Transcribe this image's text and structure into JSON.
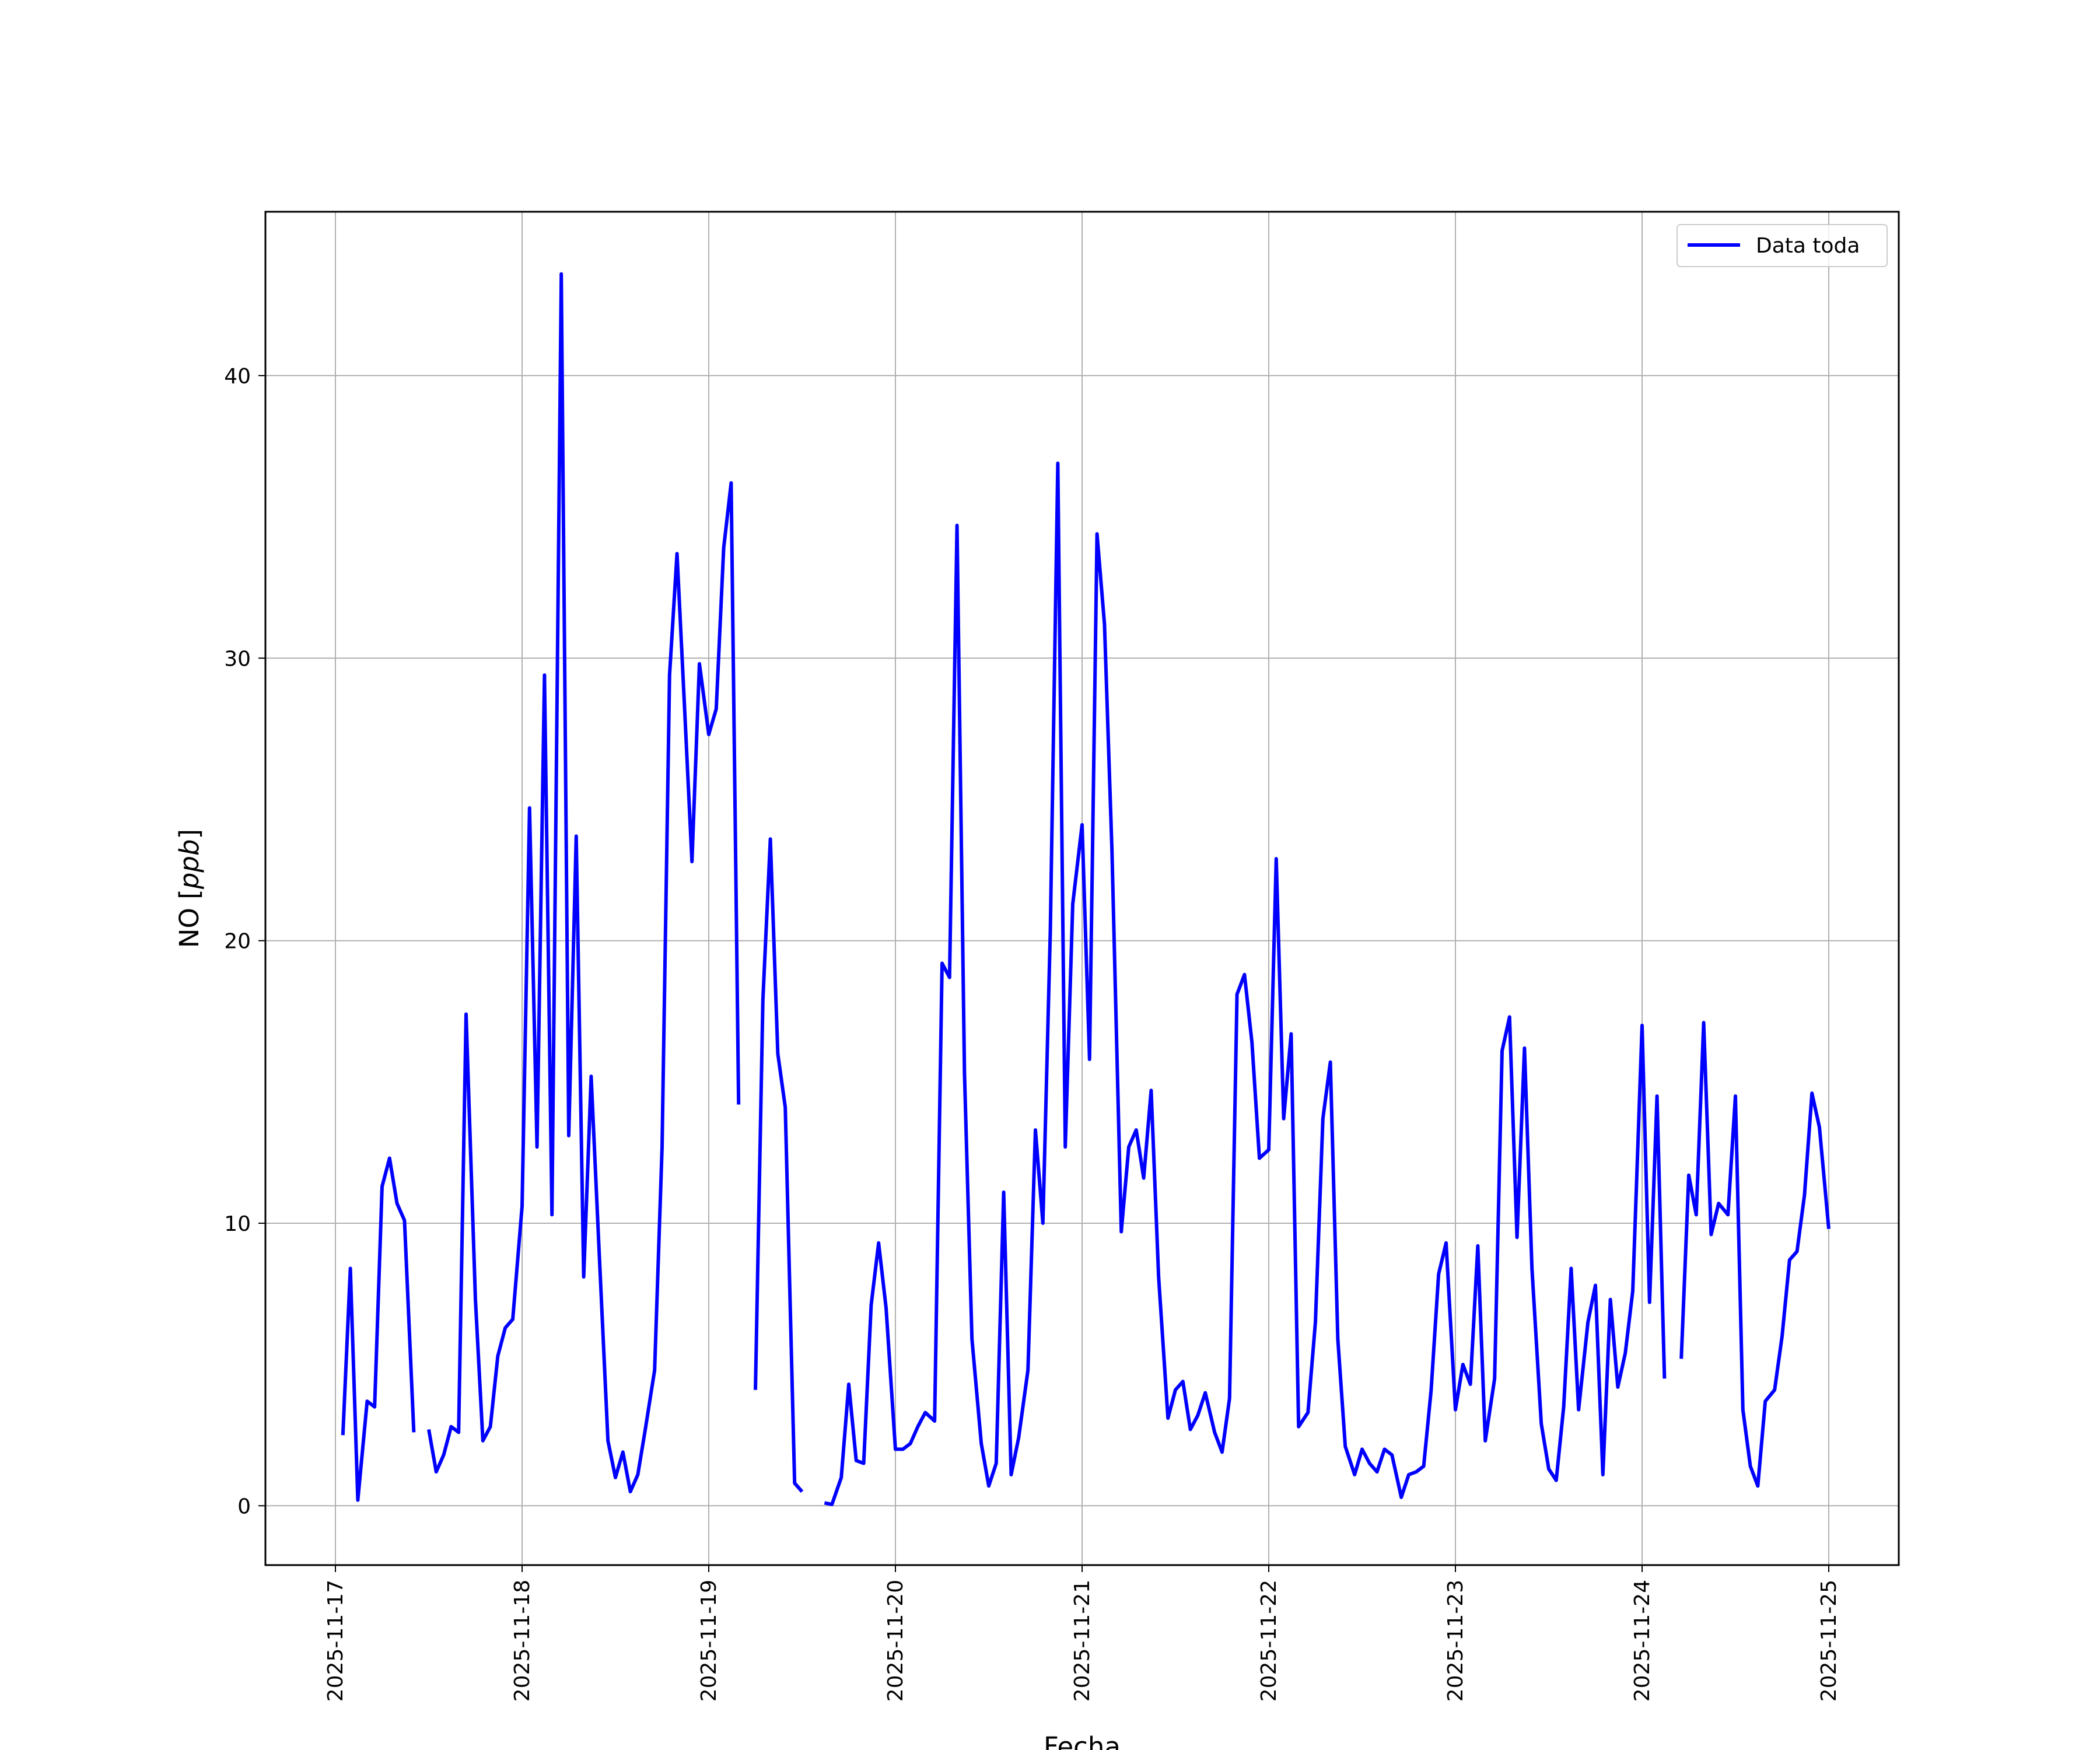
{
  "chart_data": {
    "type": "line",
    "title": "",
    "xlabel": "Fecha",
    "ylabel": "NO [ppb]",
    "ylabel_main": "NO [",
    "ylabel_unit": "ppb",
    "ylabel_close": "]",
    "x_start": "2025-11-17",
    "xlim": [
      "2025-11-16T15:00",
      "2025-11-25T09:00"
    ],
    "ylim": [
      -2.1,
      45.8
    ],
    "grid": true,
    "legend": "top-right",
    "x_ticks": [
      "2025-11-17",
      "2025-11-18",
      "2025-11-19",
      "2025-11-20",
      "2025-11-21",
      "2025-11-22",
      "2025-11-23",
      "2025-11-24",
      "2025-11-25"
    ],
    "y_ticks": [
      0,
      10,
      20,
      30,
      40
    ],
    "y_tick_labels": [
      "0",
      "10",
      "20",
      "30",
      "40"
    ],
    "series": [
      {
        "name": "Data toda",
        "color": "#0000ff",
        "segments": [
          [
            [
              0.04,
              2.5
            ],
            [
              0.08,
              8.4
            ],
            [
              0.12,
              0.2
            ],
            [
              0.17,
              3.7
            ],
            [
              0.21,
              3.5
            ],
            [
              0.25,
              11.3
            ],
            [
              0.29,
              12.3
            ],
            [
              0.33,
              10.7
            ],
            [
              0.37,
              10.1
            ],
            [
              0.42,
              2.6
            ]
          ],
          [
            [
              0.5,
              2.7
            ],
            [
              0.54,
              1.2
            ],
            [
              0.58,
              1.8
            ],
            [
              0.62,
              2.8
            ],
            [
              0.66,
              2.6
            ],
            [
              0.7,
              17.4
            ],
            [
              0.75,
              7.3
            ],
            [
              0.79,
              2.3
            ],
            [
              0.83,
              2.8
            ],
            [
              0.87,
              5.3
            ],
            [
              0.91,
              6.3
            ],
            [
              0.95,
              6.6
            ],
            [
              1.0,
              10.6
            ],
            [
              1.04,
              24.7
            ],
            [
              1.08,
              12.7
            ],
            [
              1.12,
              29.4
            ],
            [
              1.16,
              10.3
            ],
            [
              1.21,
              43.6
            ],
            [
              1.25,
              13.1
            ],
            [
              1.29,
              23.7
            ],
            [
              1.33,
              8.1
            ],
            [
              1.37,
              15.2
            ],
            [
              1.41,
              9.4
            ],
            [
              1.46,
              2.3
            ],
            [
              1.5,
              1.0
            ],
            [
              1.54,
              1.9
            ],
            [
              1.58,
              0.5
            ],
            [
              1.62,
              1.1
            ],
            [
              1.66,
              2.7
            ],
            [
              1.71,
              4.8
            ],
            [
              1.75,
              12.7
            ],
            [
              1.79,
              29.4
            ],
            [
              1.83,
              33.7
            ],
            [
              1.87,
              28.3
            ],
            [
              1.91,
              22.8
            ],
            [
              1.95,
              29.8
            ],
            [
              2.0,
              27.3
            ],
            [
              2.04,
              28.2
            ],
            [
              2.08,
              33.9
            ],
            [
              2.12,
              36.2
            ],
            [
              2.16,
              14.2
            ]
          ],
          [
            [
              2.25,
              4.1
            ],
            [
              2.29,
              17.9
            ],
            [
              2.33,
              23.6
            ],
            [
              2.37,
              16.0
            ],
            [
              2.41,
              14.1
            ],
            [
              2.46,
              0.8
            ],
            [
              2.5,
              0.5
            ]
          ],
          [
            [
              2.62,
              0.1
            ],
            [
              2.66,
              0.05
            ],
            [
              2.71,
              1.0
            ],
            [
              2.75,
              4.3
            ],
            [
              2.79,
              1.6
            ],
            [
              2.83,
              1.5
            ],
            [
              2.87,
              7.1
            ],
            [
              2.91,
              9.3
            ],
            [
              2.95,
              7.0
            ],
            [
              3.0,
              2.0
            ],
            [
              3.04,
              2.0
            ],
            [
              3.08,
              2.2
            ],
            [
              3.12,
              2.8
            ],
            [
              3.16,
              3.3
            ],
            [
              3.21,
              3.0
            ],
            [
              3.25,
              19.2
            ],
            [
              3.29,
              18.7
            ],
            [
              3.33,
              34.7
            ],
            [
              3.37,
              15.3
            ],
            [
              3.41,
              5.9
            ],
            [
              3.46,
              2.2
            ],
            [
              3.5,
              0.7
            ],
            [
              3.54,
              1.5
            ],
            [
              3.58,
              11.1
            ],
            [
              3.62,
              1.1
            ],
            [
              3.66,
              2.4
            ],
            [
              3.71,
              4.8
            ],
            [
              3.75,
              13.3
            ],
            [
              3.79,
              10.0
            ],
            [
              3.83,
              20.4
            ],
            [
              3.87,
              36.9
            ],
            [
              3.91,
              12.7
            ],
            [
              3.95,
              21.3
            ],
            [
              4.0,
              24.1
            ],
            [
              4.04,
              15.8
            ],
            [
              4.08,
              34.4
            ],
            [
              4.12,
              31.2
            ],
            [
              4.16,
              23.2
            ],
            [
              4.21,
              9.7
            ],
            [
              4.25,
              12.7
            ],
            [
              4.29,
              13.3
            ],
            [
              4.33,
              11.6
            ],
            [
              4.37,
              14.7
            ],
            [
              4.41,
              8.1
            ],
            [
              4.46,
              3.1
            ],
            [
              4.5,
              4.1
            ],
            [
              4.54,
              4.4
            ],
            [
              4.58,
              2.7
            ],
            [
              4.62,
              3.2
            ],
            [
              4.66,
              4.0
            ],
            [
              4.71,
              2.6
            ],
            [
              4.75,
              1.9
            ],
            [
              4.79,
              3.8
            ],
            [
              4.83,
              18.1
            ],
            [
              4.87,
              18.8
            ],
            [
              4.91,
              16.4
            ],
            [
              4.95,
              12.3
            ],
            [
              5.0,
              12.6
            ],
            [
              5.04,
              22.9
            ],
            [
              5.08,
              13.7
            ],
            [
              5.12,
              16.7
            ],
            [
              5.16,
              2.8
            ],
            [
              5.21,
              3.3
            ],
            [
              5.25,
              6.5
            ],
            [
              5.29,
              13.7
            ],
            [
              5.33,
              15.7
            ],
            [
              5.37,
              5.9
            ],
            [
              5.41,
              2.1
            ],
            [
              5.46,
              1.1
            ],
            [
              5.5,
              2.0
            ],
            [
              5.54,
              1.5
            ],
            [
              5.58,
              1.2
            ],
            [
              5.62,
              2.0
            ],
            [
              5.66,
              1.8
            ],
            [
              5.71,
              0.3
            ],
            [
              5.75,
              1.1
            ],
            [
              5.79,
              1.2
            ],
            [
              5.83,
              1.4
            ],
            [
              5.87,
              4.1
            ],
            [
              5.91,
              8.2
            ],
            [
              5.95,
              9.3
            ],
            [
              6.0,
              3.4
            ],
            [
              6.04,
              5.0
            ],
            [
              6.08,
              4.3
            ],
            [
              6.12,
              9.2
            ],
            [
              6.16,
              2.3
            ],
            [
              6.21,
              4.5
            ],
            [
              6.25,
              16.1
            ],
            [
              6.29,
              17.3
            ],
            [
              6.33,
              9.5
            ],
            [
              6.37,
              16.2
            ],
            [
              6.41,
              8.4
            ],
            [
              6.46,
              2.9
            ],
            [
              6.5,
              1.3
            ],
            [
              6.54,
              0.9
            ],
            [
              6.58,
              3.5
            ],
            [
              6.62,
              8.4
            ],
            [
              6.66,
              3.4
            ],
            [
              6.71,
              6.5
            ],
            [
              6.75,
              7.8
            ],
            [
              6.79,
              1.1
            ],
            [
              6.83,
              7.3
            ],
            [
              6.87,
              4.2
            ],
            [
              6.91,
              5.4
            ],
            [
              6.95,
              7.6
            ],
            [
              7.0,
              17.0
            ],
            [
              7.04,
              7.2
            ],
            [
              7.08,
              14.5
            ],
            [
              7.12,
              4.5
            ]
          ],
          [
            [
              7.21,
              5.2
            ],
            [
              7.25,
              11.7
            ],
            [
              7.29,
              10.3
            ],
            [
              7.33,
              17.1
            ],
            [
              7.37,
              9.6
            ],
            [
              7.41,
              10.7
            ],
            [
              7.46,
              10.3
            ],
            [
              7.5,
              14.5
            ],
            [
              7.54,
              3.4
            ],
            [
              7.58,
              1.4
            ],
            [
              7.62,
              0.7
            ],
            [
              7.66,
              3.7
            ],
            [
              7.71,
              4.1
            ],
            [
              7.75,
              6.0
            ],
            [
              7.79,
              8.7
            ],
            [
              7.83,
              9.0
            ],
            [
              7.87,
              11.0
            ],
            [
              7.91,
              14.6
            ],
            [
              7.95,
              13.4
            ],
            [
              8.0,
              9.8
            ]
          ]
        ]
      }
    ]
  }
}
